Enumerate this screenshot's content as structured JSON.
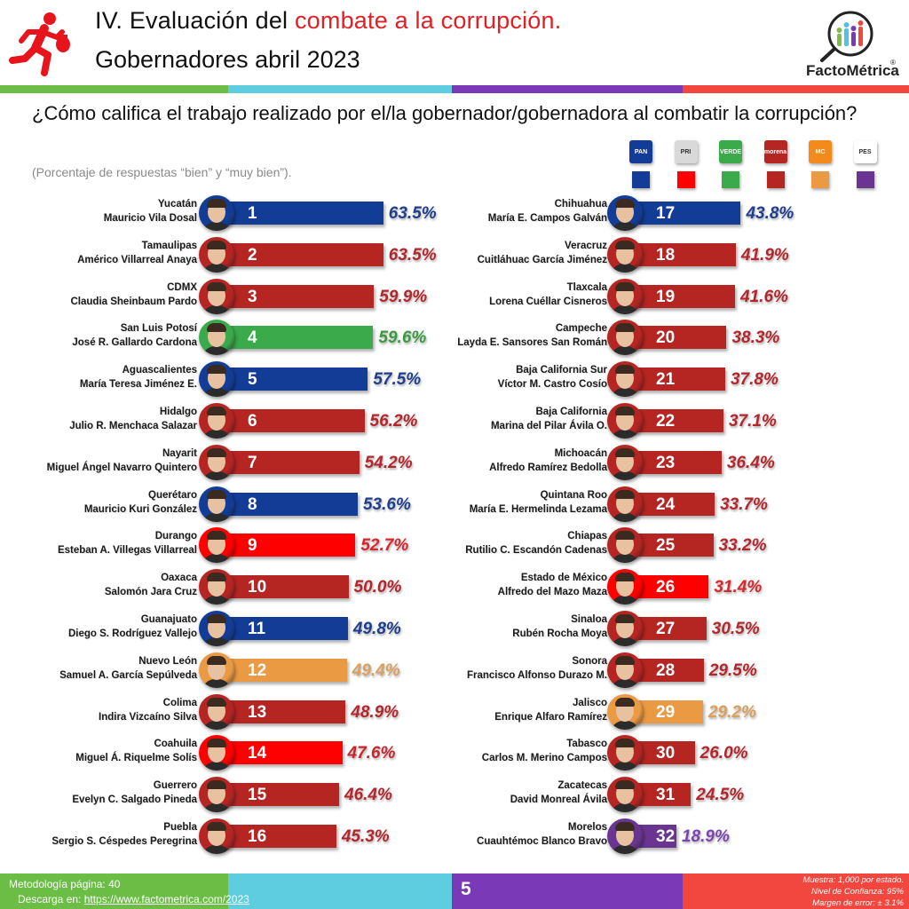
{
  "header": {
    "title_prefix": "IV. Evaluación del ",
    "title_accent": "combate a la corrupción.",
    "title_line2": "Gobernadores abril 2023",
    "logo_text": "FactoMétrica",
    "logo_reg": "®"
  },
  "question": "¿Cómo califica el trabajo realizado por el/la gobernador/gobernadora al combatir la corrupción?",
  "subtitle": "(Porcentaje de respuestas “bien” y “muy bien”).",
  "legend": [
    {
      "party": "PAN",
      "label": "PAN",
      "color": "#123c96",
      "logo_bg": "#123c96"
    },
    {
      "party": "PRI",
      "label": "PRI",
      "color": "#ff0000",
      "logo_bg": "#d9d9d9"
    },
    {
      "party": "VERDE",
      "label": "VERDE",
      "color": "#3aaa4a",
      "logo_bg": "#3aaa4a"
    },
    {
      "party": "morena",
      "label": "morena",
      "color": "#b52522",
      "logo_bg": "#b52522"
    },
    {
      "party": "MC",
      "label": "MC",
      "color": "#eb9a44",
      "logo_bg": "#f28a1c"
    },
    {
      "party": "Encuentro Solidario",
      "label": "PES",
      "color": "#6a3590",
      "logo_bg": "#ffffff"
    }
  ],
  "chart_data": {
    "type": "bar",
    "orientation": "horizontal",
    "title": "¿Cómo califica el trabajo realizado por el/la gobernador/gobernadora al combatir la corrupción?",
    "subtitle": "(Porcentaje de respuestas “bien” y “muy bien”).",
    "xlabel": "",
    "ylabel": "",
    "unit": "%",
    "categories": [
      "Yucatán",
      "Tamaulipas",
      "CDMX",
      "San Luis Potosí",
      "Aguascalientes",
      "Hidalgo",
      "Nayarit",
      "Querétaro",
      "Durango",
      "Oaxaca",
      "Guanajuato",
      "Nuevo León",
      "Colima",
      "Coahuila",
      "Guerrero",
      "Puebla",
      "Chihuahua",
      "Veracruz",
      "Tlaxcala",
      "Campeche",
      "Baja California Sur",
      "Baja California",
      "Michoacán",
      "Quintana Roo",
      "Chiapas",
      "Estado de México",
      "Sinaloa",
      "Sonora",
      "Jalisco",
      "Tabasco",
      "Zacatecas",
      "Morelos"
    ],
    "values": [
      63.5,
      63.5,
      59.9,
      59.6,
      57.5,
      56.2,
      54.2,
      53.6,
      52.7,
      50.0,
      49.8,
      49.4,
      48.9,
      47.6,
      46.4,
      45.3,
      43.8,
      41.9,
      41.6,
      38.3,
      37.8,
      37.1,
      36.4,
      33.7,
      33.2,
      31.4,
      30.5,
      29.5,
      29.2,
      26.0,
      24.5,
      18.9
    ],
    "rows": [
      {
        "rank": "1",
        "state": "Yucatán",
        "governor": "Mauricio Vila Dosal",
        "value": 63.5,
        "pct": "63.5%",
        "party": "PAN",
        "color": "#123c96",
        "pct_color": "#1f3e8c"
      },
      {
        "rank": "2",
        "state": "Tamaulipas",
        "governor": "Américo Villarreal Anaya",
        "value": 63.5,
        "pct": "63.5%",
        "party": "morena",
        "color": "#b52522",
        "pct_color": "#b3262c"
      },
      {
        "rank": "3",
        "state": "CDMX",
        "governor": "Claudia Sheinbaum Pardo",
        "value": 59.9,
        "pct": "59.9%",
        "party": "morena",
        "color": "#b52522",
        "pct_color": "#b3262c"
      },
      {
        "rank": "4",
        "state": "San Luis Potosí",
        "governor": "José R. Gallardo Cardona",
        "value": 59.6,
        "pct": "59.6%",
        "party": "VERDE",
        "color": "#3aaa4a",
        "pct_color": "#3a9a44"
      },
      {
        "rank": "5",
        "state": "Aguascalientes",
        "governor": "María Teresa Jiménez E.",
        "value": 57.5,
        "pct": "57.5%",
        "party": "PAN",
        "color": "#123c96",
        "pct_color": "#1f3e8c"
      },
      {
        "rank": "6",
        "state": "Hidalgo",
        "governor": "Julio R. Menchaca Salazar",
        "value": 56.2,
        "pct": "56.2%",
        "party": "morena",
        "color": "#b52522",
        "pct_color": "#b3262c"
      },
      {
        "rank": "7",
        "state": "Nayarit",
        "governor": "Miguel Ángel Navarro Quintero",
        "value": 54.2,
        "pct": "54.2%",
        "party": "morena",
        "color": "#b52522",
        "pct_color": "#b3262c"
      },
      {
        "rank": "8",
        "state": "Querétaro",
        "governor": "Mauricio Kuri González",
        "value": 53.6,
        "pct": "53.6%",
        "party": "PAN",
        "color": "#123c96",
        "pct_color": "#1f3e8c"
      },
      {
        "rank": "9",
        "state": "Durango",
        "governor": "Esteban A. Villegas Villarreal",
        "value": 52.7,
        "pct": "52.7%",
        "party": "PRI",
        "color": "#ff0000",
        "pct_color": "#d8262c"
      },
      {
        "rank": "10",
        "state": "Oaxaca",
        "governor": "Salomón Jara Cruz",
        "value": 50.0,
        "pct": "50.0%",
        "party": "morena",
        "color": "#b52522",
        "pct_color": "#b3262c"
      },
      {
        "rank": "11",
        "state": "Guanajuato",
        "governor": "Diego S. Rodríguez Vallejo",
        "value": 49.8,
        "pct": "49.8%",
        "party": "PAN",
        "color": "#123c96",
        "pct_color": "#1f3e8c"
      },
      {
        "rank": "12",
        "state": "Nuevo León",
        "governor": "Samuel A. García Sepúlveda",
        "value": 49.4,
        "pct": "49.4%",
        "party": "MC",
        "color": "#eb9a44",
        "pct_color": "#d9a060"
      },
      {
        "rank": "13",
        "state": "Colima",
        "governor": "Indira Vizcaíno Silva",
        "value": 48.9,
        "pct": "48.9%",
        "party": "morena",
        "color": "#b52522",
        "pct_color": "#b3262c"
      },
      {
        "rank": "14",
        "state": "Coahuila",
        "governor": "Miguel Á. Riquelme Solís",
        "value": 47.6,
        "pct": "47.6%",
        "party": "PRI",
        "color": "#ff0000",
        "pct_color": "#c8262c"
      },
      {
        "rank": "15",
        "state": "Guerrero",
        "governor": "Evelyn C. Salgado Pineda",
        "value": 46.4,
        "pct": "46.4%",
        "party": "morena",
        "color": "#b52522",
        "pct_color": "#b3262c"
      },
      {
        "rank": "16",
        "state": "Puebla",
        "governor": "Sergio S. Céspedes Peregrina",
        "value": 45.3,
        "pct": "45.3%",
        "party": "morena",
        "color": "#b52522",
        "pct_color": "#b3262c"
      },
      {
        "rank": "17",
        "state": "Chihuahua",
        "governor": "María E. Campos Galván",
        "value": 43.8,
        "pct": "43.8%",
        "party": "PAN",
        "color": "#123c96",
        "pct_color": "#1f3e8c"
      },
      {
        "rank": "18",
        "state": "Veracruz",
        "governor": "Cuitláhuac García Jiménez",
        "value": 41.9,
        "pct": "41.9%",
        "party": "morena",
        "color": "#b52522",
        "pct_color": "#b3262c"
      },
      {
        "rank": "19",
        "state": "Tlaxcala",
        "governor": "Lorena Cuéllar Cisneros",
        "value": 41.6,
        "pct": "41.6%",
        "party": "morena",
        "color": "#b52522",
        "pct_color": "#b3262c"
      },
      {
        "rank": "20",
        "state": "Campeche",
        "governor": "Layda E. Sansores San Román",
        "value": 38.3,
        "pct": "38.3%",
        "party": "morena",
        "color": "#b52522",
        "pct_color": "#b3262c"
      },
      {
        "rank": "21",
        "state": "Baja California Sur",
        "governor": "Víctor M. Castro Cosío",
        "value": 37.8,
        "pct": "37.8%",
        "party": "morena",
        "color": "#b52522",
        "pct_color": "#b3262c"
      },
      {
        "rank": "22",
        "state": "Baja California",
        "governor": "Marina del Pilar Ávila O.",
        "value": 37.1,
        "pct": "37.1%",
        "party": "morena",
        "color": "#b52522",
        "pct_color": "#b3262c"
      },
      {
        "rank": "23",
        "state": "Michoacán",
        "governor": "Alfredo Ramírez Bedolla",
        "value": 36.4,
        "pct": "36.4%",
        "party": "morena",
        "color": "#b52522",
        "pct_color": "#b3262c"
      },
      {
        "rank": "24",
        "state": "Quintana Roo",
        "governor": "María E. Hermelinda Lezama",
        "value": 33.7,
        "pct": "33.7%",
        "party": "morena",
        "color": "#b52522",
        "pct_color": "#b3262c"
      },
      {
        "rank": "25",
        "state": "Chiapas",
        "governor": "Rutilio C. Escandón Cadenas",
        "value": 33.2,
        "pct": "33.2%",
        "party": "morena",
        "color": "#b52522",
        "pct_color": "#b3262c"
      },
      {
        "rank": "26",
        "state": "Estado de México",
        "governor": "Alfredo del Mazo Maza",
        "value": 31.4,
        "pct": "31.4%",
        "party": "PRI",
        "color": "#ff0000",
        "pct_color": "#d8262c"
      },
      {
        "rank": "27",
        "state": "Sinaloa",
        "governor": "Rubén Rocha Moya",
        "value": 30.5,
        "pct": "30.5%",
        "party": "morena",
        "color": "#b52522",
        "pct_color": "#b3262c"
      },
      {
        "rank": "28",
        "state": "Sonora",
        "governor": "Francisco Alfonso Durazo M.",
        "value": 29.5,
        "pct": "29.5%",
        "party": "morena",
        "color": "#b52522",
        "pct_color": "#b3262c"
      },
      {
        "rank": "29",
        "state": "Jalisco",
        "governor": "Enrique Alfaro Ramírez",
        "value": 29.2,
        "pct": "29.2%",
        "party": "MC",
        "color": "#eb9a44",
        "pct_color": "#d9a060"
      },
      {
        "rank": "30",
        "state": "Tabasco",
        "governor": "Carlos M. Merino Campos",
        "value": 26.0,
        "pct": "26.0%",
        "party": "morena",
        "color": "#b52522",
        "pct_color": "#b3262c"
      },
      {
        "rank": "31",
        "state": "Zacatecas",
        "governor": "David Monreal Ávila",
        "value": 24.5,
        "pct": "24.5%",
        "party": "morena",
        "color": "#b52522",
        "pct_color": "#b3262c"
      },
      {
        "rank": "32",
        "state": "Morelos",
        "governor": "Cuauhtémoc Blanco Bravo",
        "value": 18.9,
        "pct": "18.9%",
        "party": "Encuentro Solidario",
        "color": "#6a3590",
        "pct_color": "#7b45b0"
      }
    ],
    "xlim": [
      0,
      70
    ],
    "grid": false,
    "legend_position": "top-right"
  },
  "footer": {
    "methodology": "Metodología página: 40",
    "download_prefix": "Descarga en: ",
    "download_link": "https://www.factometrica.com/2023",
    "page_number": "5",
    "sample": "Muestra:  1,000 por estado.",
    "confidence": "Nivel de Confianza: 95%",
    "margin": "Margen de error: ± 3.1%"
  }
}
